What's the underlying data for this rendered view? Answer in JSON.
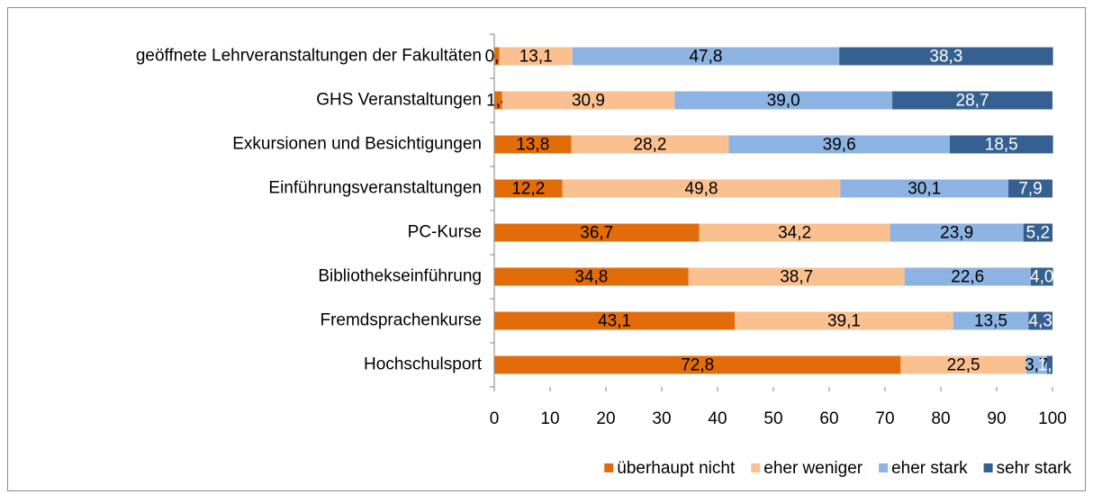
{
  "chart_data": {
    "type": "stacked-barh",
    "categories": [
      "geöffnete Lehrveranstaltungen der Fakultäten",
      "GHS Veranstaltungen",
      "Exkursionen und Besichtigungen",
      "Einführungsveranstaltungen",
      "PC-Kurse",
      "Bibliothekseinführung",
      "Fremdsprachenkurse",
      "Hochschulsport"
    ],
    "series": [
      {
        "name": "überhaupt nicht",
        "color": "#e36c0a",
        "label_color": "#000000",
        "values": [
          0.9,
          1.4,
          13.8,
          12.2,
          36.7,
          34.8,
          43.1,
          72.8
        ],
        "value_labels": [
          "0,9",
          "1,4",
          "13,8",
          "12,2",
          "36,7",
          "34,8",
          "43,1",
          "72,8"
        ]
      },
      {
        "name": "eher weniger",
        "color": "#fac090",
        "label_color": "#000000",
        "values": [
          13.1,
          30.9,
          28.2,
          49.8,
          34.2,
          38.7,
          39.1,
          22.5
        ],
        "value_labels": [
          "13,1",
          "30,9",
          "28,2",
          "49,8",
          "34,2",
          "38,7",
          "39,1",
          "22,5"
        ]
      },
      {
        "name": "eher stark",
        "color": "#8db3e2",
        "label_color": "#000000",
        "values": [
          47.8,
          39.0,
          39.6,
          30.1,
          23.9,
          22.6,
          13.5,
          3.7
        ],
        "value_labels": [
          "47,8",
          "39,0",
          "39,6",
          "30,1",
          "23,9",
          "22,6",
          "13,5",
          "3,7"
        ]
      },
      {
        "name": "sehr stark",
        "color": "#366092",
        "label_color": "#ffffff",
        "values": [
          38.3,
          28.7,
          18.5,
          7.9,
          5.2,
          4.0,
          4.3,
          1.0
        ],
        "value_labels": [
          "38,3",
          "28,7",
          "18,5",
          "7,9",
          "5,2",
          "4,0",
          "4,3",
          "1,0"
        ]
      }
    ],
    "xlim": [
      0,
      100
    ],
    "xticks": [
      0,
      10,
      20,
      30,
      40,
      50,
      60,
      70,
      80,
      90,
      100
    ],
    "legend": "bottom-right"
  }
}
